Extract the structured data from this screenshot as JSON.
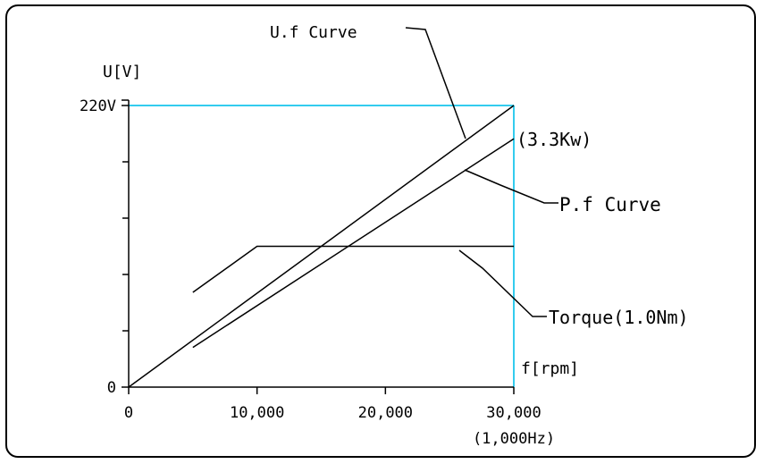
{
  "chart_data": {
    "type": "line",
    "xlabel": "f[rpm]",
    "ylabel": "U[V]",
    "x_ticks": [
      {
        "value": 0,
        "label": "0"
      },
      {
        "value": 10000,
        "label": "10,000"
      },
      {
        "value": 20000,
        "label": "20,000"
      },
      {
        "value": 30000,
        "label": "30,000"
      }
    ],
    "x_tick_sublabel": "(1,000Hz)",
    "y_ticks": [
      {
        "value": 0,
        "label": "0"
      },
      {
        "value": 220,
        "label": "220V"
      }
    ],
    "xlim": [
      0,
      30000
    ],
    "ylim": [
      0,
      220
    ],
    "limit_lines": {
      "color": "#33ccee",
      "max_x": 30000,
      "max_y": 220
    },
    "series": [
      {
        "name": "U.f Curve",
        "x": [
          0,
          30000
        ],
        "y": [
          0,
          220
        ]
      },
      {
        "name": "P.f Curve",
        "x": [
          5000,
          30000
        ],
        "y": [
          31,
          194
        ]
      },
      {
        "name": "Torque(1.0Nm)",
        "x": [
          5000,
          10000,
          30000
        ],
        "y": [
          74,
          110,
          110
        ]
      }
    ],
    "annotations": [
      {
        "text": "U.f Curve",
        "target_series": 0
      },
      {
        "text": "P.f Curve",
        "target_series": 1
      },
      {
        "text": "Torque(1.0Nm)",
        "target_series": 2
      },
      {
        "text": "(3.3Kw)",
        "target_series": 1
      }
    ]
  }
}
